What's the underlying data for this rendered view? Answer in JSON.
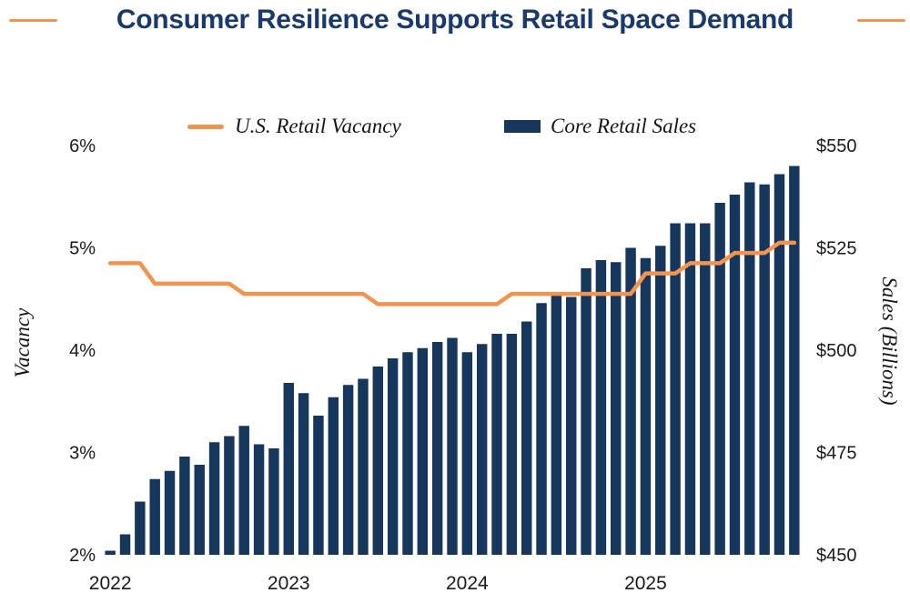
{
  "title": "Consumer Resilience Supports Retail Space Demand",
  "legend": {
    "line_label": "U.S. Retail Vacancy",
    "bar_label": "Core Retail Sales"
  },
  "axes": {
    "left_title": "Vacancy",
    "right_title": "Sales (Billions)",
    "left_ticks": [
      "6%",
      "5%",
      "4%",
      "3%",
      "2%"
    ],
    "right_ticks": [
      "$550",
      "$525",
      "$500",
      "$475",
      "$450"
    ],
    "x_ticks": [
      "2022",
      "2023",
      "2024",
      "2025"
    ]
  },
  "colors": {
    "navy": "#16365C",
    "orange": "#F2944F",
    "title_navy": "#1A3A6B",
    "text": "#1A1A1A"
  },
  "chart_data": {
    "type": "bar+line",
    "title": "Consumer Resilience Supports Retail Space Demand",
    "x": [
      "2022-01",
      "2022-02",
      "2022-03",
      "2022-04",
      "2022-05",
      "2022-06",
      "2022-07",
      "2022-08",
      "2022-09",
      "2022-10",
      "2022-11",
      "2022-12",
      "2023-01",
      "2023-02",
      "2023-03",
      "2023-04",
      "2023-05",
      "2023-06",
      "2023-07",
      "2023-08",
      "2023-09",
      "2023-10",
      "2023-11",
      "2023-12",
      "2024-01",
      "2024-02",
      "2024-03",
      "2024-04",
      "2024-05",
      "2024-06",
      "2024-07",
      "2024-08",
      "2024-09",
      "2024-10",
      "2024-11",
      "2024-12",
      "2025-01",
      "2025-02",
      "2025-03",
      "2025-04",
      "2025-05",
      "2025-06",
      "2025-07",
      "2025-08",
      "2025-09",
      "2025-10",
      "2025-11"
    ],
    "series": [
      {
        "name": "U.S. Retail Vacancy",
        "type": "line",
        "axis": "left",
        "unit": "%",
        "values": [
          4.85,
          4.85,
          4.85,
          4.65,
          4.65,
          4.65,
          4.65,
          4.65,
          4.65,
          4.55,
          4.55,
          4.55,
          4.55,
          4.55,
          4.55,
          4.55,
          4.55,
          4.55,
          4.45,
          4.45,
          4.45,
          4.45,
          4.45,
          4.45,
          4.45,
          4.45,
          4.45,
          4.55,
          4.55,
          4.55,
          4.55,
          4.55,
          4.55,
          4.55,
          4.55,
          4.55,
          4.75,
          4.75,
          4.75,
          4.85,
          4.85,
          4.85,
          4.95,
          4.95,
          4.95,
          5.05,
          5.05
        ]
      },
      {
        "name": "Core Retail Sales",
        "type": "bar",
        "axis": "right",
        "unit": "$B",
        "values": [
          451,
          455,
          463,
          468.5,
          470.5,
          474,
          472,
          477.5,
          479,
          481.5,
          477,
          476,
          492,
          489.5,
          484,
          488.5,
          491.5,
          493,
          496,
          498,
          499.5,
          500.5,
          502,
          503,
          499.5,
          501.5,
          504,
          504,
          507,
          511.5,
          514,
          513,
          520,
          522,
          521.5,
          525,
          522.5,
          525.5,
          531,
          531,
          531,
          536,
          538,
          541,
          540.5,
          543,
          545
        ]
      }
    ],
    "left_axis": {
      "label": "Vacancy",
      "unit": "%",
      "range": [
        2,
        6
      ],
      "tick_step": 1
    },
    "right_axis": {
      "label": "Sales (Billions)",
      "unit": "$B",
      "range": [
        450,
        550
      ],
      "tick_step": 25
    },
    "x_axis": {
      "tick_labels": [
        "2022",
        "2023",
        "2024",
        "2025"
      ]
    },
    "grid": false,
    "legend_position": "top-center"
  }
}
